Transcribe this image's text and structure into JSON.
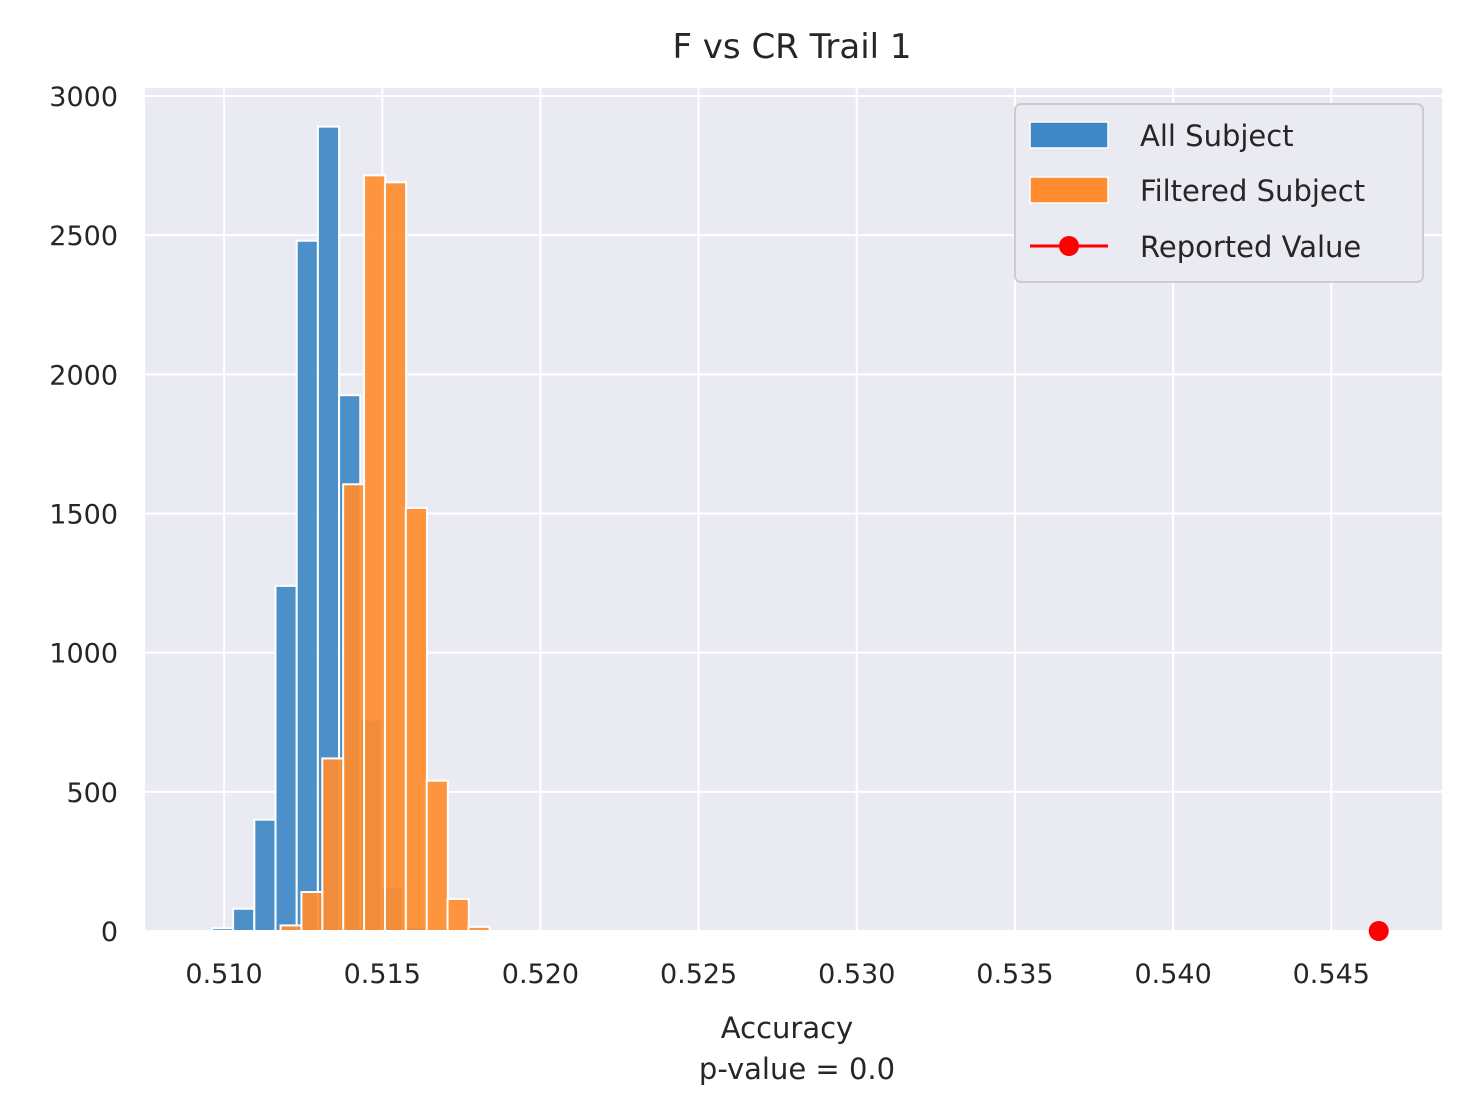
{
  "chart_data": {
    "type": "histogram",
    "title": "F vs CR Trail 1",
    "xlabel": "Accuracy",
    "xlabel_sub": "p-value = 0.0",
    "ylabel": "",
    "xlim": [
      0.5075,
      0.5485
    ],
    "ylim": [
      0,
      3000
    ],
    "xticks": [
      0.51,
      0.515,
      0.52,
      0.525,
      0.53,
      0.535,
      0.54,
      0.545
    ],
    "xtick_labels": [
      "0.510",
      "0.515",
      "0.520",
      "0.525",
      "0.530",
      "0.535",
      "0.540",
      "0.545"
    ],
    "yticks": [
      0,
      500,
      1000,
      1500,
      2000,
      2500,
      3000
    ],
    "ytick_labels": [
      "0",
      "500",
      "1000",
      "1500",
      "2000",
      "2500",
      "3000"
    ],
    "grid": true,
    "legend_position": "top-right",
    "bin_width": 0.00067,
    "series": [
      {
        "name": "All Subject",
        "color": "#3f88c5",
        "bins": [
          {
            "x": 0.50995,
            "count": 10
          },
          {
            "x": 0.51062,
            "count": 80
          },
          {
            "x": 0.51129,
            "count": 400
          },
          {
            "x": 0.51196,
            "count": 1240
          },
          {
            "x": 0.51263,
            "count": 2480
          },
          {
            "x": 0.5133,
            "count": 2890
          },
          {
            "x": 0.51397,
            "count": 1925
          },
          {
            "x": 0.51464,
            "count": 760
          },
          {
            "x": 0.51531,
            "count": 160
          },
          {
            "x": 0.51598,
            "count": 15
          }
        ]
      },
      {
        "name": "Filtered Subject",
        "color": "#ff8c2e",
        "bins": [
          {
            "x": 0.51212,
            "count": 20
          },
          {
            "x": 0.51278,
            "count": 140
          },
          {
            "x": 0.51344,
            "count": 620
          },
          {
            "x": 0.5141,
            "count": 1605
          },
          {
            "x": 0.51476,
            "count": 2715
          },
          {
            "x": 0.51542,
            "count": 2690
          },
          {
            "x": 0.51608,
            "count": 1520
          },
          {
            "x": 0.51674,
            "count": 540
          },
          {
            "x": 0.5174,
            "count": 115
          },
          {
            "x": 0.51806,
            "count": 15
          }
        ]
      },
      {
        "name": "Reported Value",
        "color": "#ff0000",
        "type": "line-marker",
        "points": [
          {
            "x": 0.5465,
            "y": 0
          }
        ]
      }
    ]
  }
}
